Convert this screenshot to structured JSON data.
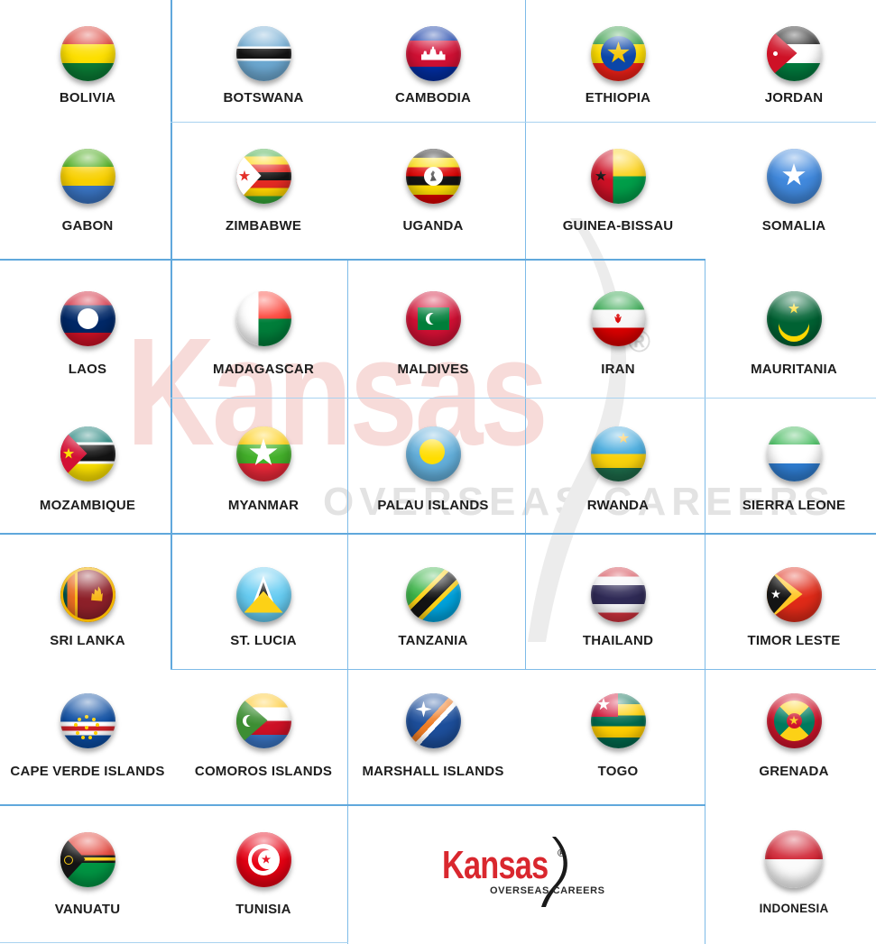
{
  "watermark": {
    "brand": "Kansas",
    "registered": "®",
    "tagline": "OVERSEAS CAREERS"
  },
  "logo": {
    "brand": "Kansas",
    "registered": "®",
    "tagline": "OVERSEAS CAREERS"
  },
  "colors": {
    "brand_red": "#d9272e",
    "grid_line_blue": "#7ebbe8",
    "label_text": "#1d1d1d"
  },
  "grid": {
    "rows": 7,
    "cols": 5
  },
  "countries": [
    {
      "id": "bolivia",
      "label": "BOLIVIA",
      "row": 1,
      "col": 1
    },
    {
      "id": "botswana",
      "label": "BOTSWANA",
      "row": 1,
      "col": 2
    },
    {
      "id": "cambodia",
      "label": "CAMBODIA",
      "row": 1,
      "col": 3
    },
    {
      "id": "ethiopia",
      "label": "ETHIOPIA",
      "row": 1,
      "col": 4
    },
    {
      "id": "jordan",
      "label": "JORDAN",
      "row": 1,
      "col": 5
    },
    {
      "id": "gabon",
      "label": "GABON",
      "row": 2,
      "col": 1
    },
    {
      "id": "zimbabwe",
      "label": "ZIMBABWE",
      "row": 2,
      "col": 2
    },
    {
      "id": "uganda",
      "label": "UGANDA",
      "row": 2,
      "col": 3
    },
    {
      "id": "guinea-bissau",
      "label": "GUINEA-BISSAU",
      "row": 2,
      "col": 4
    },
    {
      "id": "somalia",
      "label": "SOMALIA",
      "row": 2,
      "col": 5
    },
    {
      "id": "laos",
      "label": "LAOS",
      "row": 3,
      "col": 1
    },
    {
      "id": "madagascar",
      "label": "MADAGASCAR",
      "row": 3,
      "col": 2
    },
    {
      "id": "maldives",
      "label": "MALDIVES",
      "row": 3,
      "col": 3
    },
    {
      "id": "iran",
      "label": "IRAN",
      "row": 3,
      "col": 4
    },
    {
      "id": "mauritania",
      "label": "MAURITANIA",
      "row": 3,
      "col": 5
    },
    {
      "id": "mozambique",
      "label": "MOZAMBIQUE",
      "row": 4,
      "col": 1
    },
    {
      "id": "myanmar",
      "label": "MYANMAR",
      "row": 4,
      "col": 2
    },
    {
      "id": "palau",
      "label": "PALAU ISLANDS",
      "row": 4,
      "col": 3
    },
    {
      "id": "rwanda",
      "label": "RWANDA",
      "row": 4,
      "col": 4
    },
    {
      "id": "sierra-leone",
      "label": "SIERRA LEONE",
      "row": 4,
      "col": 5
    },
    {
      "id": "sri-lanka",
      "label": "SRI LANKA",
      "row": 5,
      "col": 1
    },
    {
      "id": "st-lucia",
      "label": "ST. LUCIA",
      "row": 5,
      "col": 2
    },
    {
      "id": "tanzania",
      "label": "TANZANIA",
      "row": 5,
      "col": 3
    },
    {
      "id": "thailand",
      "label": "THAILAND",
      "row": 5,
      "col": 4
    },
    {
      "id": "timor-leste",
      "label": "TIMOR LESTE",
      "row": 5,
      "col": 5
    },
    {
      "id": "cape-verde",
      "label": "CAPE VERDE ISLANDS",
      "row": 6,
      "col": 1
    },
    {
      "id": "comoros",
      "label": "COMOROS ISLANDS",
      "row": 6,
      "col": 2
    },
    {
      "id": "marshall",
      "label": "MARSHALL ISLANDS",
      "row": 6,
      "col": 3
    },
    {
      "id": "togo",
      "label": "TOGO",
      "row": 6,
      "col": 4
    },
    {
      "id": "grenada",
      "label": "GRENADA",
      "row": 6,
      "col": 5
    },
    {
      "id": "vanuatu",
      "label": "VANUATU",
      "row": 7,
      "col": 1
    },
    {
      "id": "tunisia",
      "label": "TUNISIA",
      "row": 7,
      "col": 2
    },
    {
      "id": "indonesia",
      "label": "INDONESIA",
      "row": 7,
      "col": 5
    }
  ]
}
